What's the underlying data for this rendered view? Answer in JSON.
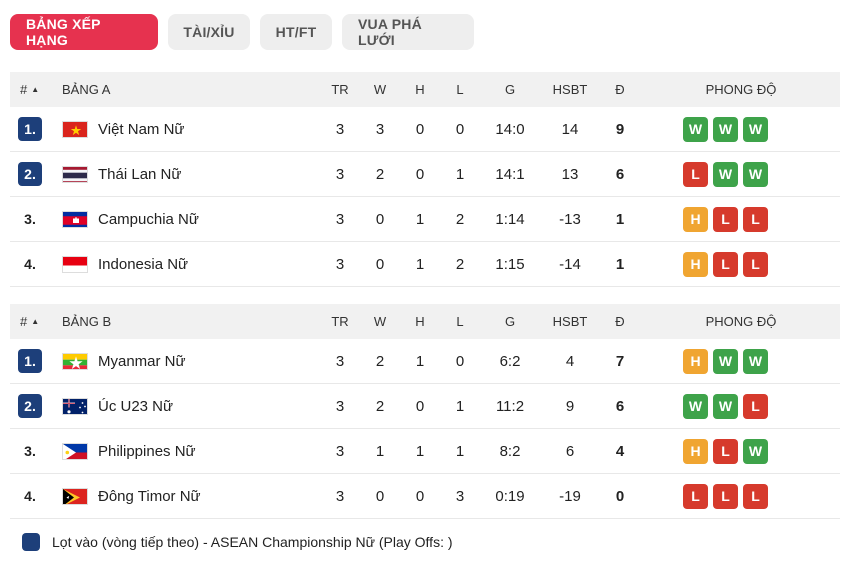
{
  "tabs": [
    "BẢNG XẾP HẠNG",
    "TÀI/XỈU",
    "HT/FT",
    "VUA PHÁ LƯỚI"
  ],
  "active_tab": 0,
  "columns": {
    "rank": "#",
    "sort_arrow": "▲",
    "tr": "TR",
    "w": "W",
    "h": "H",
    "l": "L",
    "g": "G",
    "hsbt": "HSBT",
    "d": "Đ",
    "form": "PHONG ĐỘ"
  },
  "groups": [
    {
      "name": "BẢNG A",
      "rows": [
        {
          "rank": "1.",
          "qualified": true,
          "flag": "vietnam",
          "team": "Việt Nam Nữ",
          "tr": "3",
          "w": "3",
          "h": "0",
          "l": "0",
          "g": "14:0",
          "hsbt": "14",
          "pts": "9",
          "form": [
            "W",
            "W",
            "W"
          ]
        },
        {
          "rank": "2.",
          "qualified": true,
          "flag": "thailand",
          "team": "Thái Lan Nữ",
          "tr": "3",
          "w": "2",
          "h": "0",
          "l": "1",
          "g": "14:1",
          "hsbt": "13",
          "pts": "6",
          "form": [
            "L",
            "W",
            "W"
          ]
        },
        {
          "rank": "3.",
          "qualified": false,
          "flag": "cambodia",
          "team": "Campuchia Nữ",
          "tr": "3",
          "w": "0",
          "h": "1",
          "l": "2",
          "g": "1:14",
          "hsbt": "-13",
          "pts": "1",
          "form": [
            "H",
            "L",
            "L"
          ]
        },
        {
          "rank": "4.",
          "qualified": false,
          "flag": "indonesia",
          "team": "Indonesia Nữ",
          "tr": "3",
          "w": "0",
          "h": "1",
          "l": "2",
          "g": "1:15",
          "hsbt": "-14",
          "pts": "1",
          "form": [
            "H",
            "L",
            "L"
          ]
        }
      ]
    },
    {
      "name": "BẢNG B",
      "rows": [
        {
          "rank": "1.",
          "qualified": true,
          "flag": "myanmar",
          "team": "Myanmar Nữ",
          "tr": "3",
          "w": "2",
          "h": "1",
          "l": "0",
          "g": "6:2",
          "hsbt": "4",
          "pts": "7",
          "form": [
            "H",
            "W",
            "W"
          ]
        },
        {
          "rank": "2.",
          "qualified": true,
          "flag": "australia",
          "team": "Úc U23 Nữ",
          "tr": "3",
          "w": "2",
          "h": "0",
          "l": "1",
          "g": "11:2",
          "hsbt": "9",
          "pts": "6",
          "form": [
            "W",
            "W",
            "L"
          ]
        },
        {
          "rank": "3.",
          "qualified": false,
          "flag": "philippines",
          "team": "Philippines Nữ",
          "tr": "3",
          "w": "1",
          "h": "1",
          "l": "1",
          "g": "8:2",
          "hsbt": "6",
          "pts": "4",
          "form": [
            "H",
            "L",
            "W"
          ]
        },
        {
          "rank": "4.",
          "qualified": false,
          "flag": "timor",
          "team": "Đông Timor Nữ",
          "tr": "3",
          "w": "0",
          "h": "0",
          "l": "3",
          "g": "0:19",
          "hsbt": "-19",
          "pts": "0",
          "form": [
            "L",
            "L",
            "L"
          ]
        }
      ]
    }
  ],
  "legend": {
    "text": "Lọt vào (vòng tiếp theo) - ASEAN Championship Nữ (Play Offs: )",
    "color": "#1d3f7a"
  },
  "colors": {
    "accent": "#e6324f",
    "qualified_badge": "#1d3f7a",
    "win": "#3ea34a",
    "loss": "#d63a2c",
    "draw": "#f0a531"
  }
}
